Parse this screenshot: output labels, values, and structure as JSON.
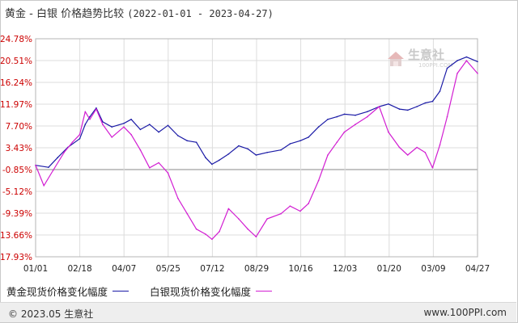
{
  "header": {
    "title": "黄金 - 白银 价格趋势比较",
    "range": "(2022-01-01 - 2023-04-27)"
  },
  "watermark": {
    "name": "生意社",
    "site": "100PPI.COM"
  },
  "footer": {
    "left": "© 2023.05 生意社",
    "right": "www.100PPI.com"
  },
  "colors": {
    "gold": "#1a1aa6",
    "silver": "#d21ed2",
    "ytick": "#cc0000",
    "grid": "#dcdcdc"
  },
  "chart_data": {
    "type": "line",
    "ylim": [
      -17.93,
      24.78
    ],
    "yticks": [
      "24.78%",
      "20.51%",
      "16.24%",
      "11.97%",
      "7.70%",
      "3.43%",
      "-0.85%",
      "-5.12%",
      "-9.39%",
      "-13.66%",
      "-17.93%"
    ],
    "ytick_values": [
      24.78,
      20.51,
      16.24,
      11.97,
      7.7,
      3.43,
      -0.85,
      -5.12,
      -9.39,
      -13.66,
      -17.93
    ],
    "xlim": [
      "2022-01-01",
      "2023-04-27"
    ],
    "xticks": [
      "01/01",
      "02/18",
      "04/07",
      "05/25",
      "07/12",
      "08/29",
      "10/16",
      "12/03",
      "01/20",
      "03/09",
      "04/27"
    ],
    "series": [
      {
        "name": "黄金现货价格变化幅度",
        "color": "#1a1aa6",
        "x": [
          "2022-01-01",
          "2022-01-15",
          "2022-01-25",
          "2022-02-05",
          "2022-02-18",
          "2022-02-24",
          "2022-03-01",
          "2022-03-08",
          "2022-03-15",
          "2022-03-25",
          "2022-04-07",
          "2022-04-15",
          "2022-04-25",
          "2022-05-05",
          "2022-05-15",
          "2022-05-25",
          "2022-06-05",
          "2022-06-15",
          "2022-06-25",
          "2022-07-05",
          "2022-07-12",
          "2022-07-20",
          "2022-07-30",
          "2022-08-10",
          "2022-08-20",
          "2022-08-29",
          "2022-09-10",
          "2022-09-25",
          "2022-10-05",
          "2022-10-16",
          "2022-10-25",
          "2022-11-05",
          "2022-11-15",
          "2022-11-25",
          "2022-12-03",
          "2022-12-15",
          "2022-12-28",
          "2023-01-10",
          "2023-01-20",
          "2023-02-01",
          "2023-02-10",
          "2023-02-20",
          "2023-03-01",
          "2023-03-09",
          "2023-03-17",
          "2023-03-25",
          "2023-04-05",
          "2023-04-15",
          "2023-04-27"
        ],
        "y": [
          0.0,
          -0.4,
          1.5,
          3.5,
          5.2,
          8.0,
          9.5,
          11.2,
          8.5,
          7.5,
          8.2,
          9.0,
          7.0,
          8.0,
          6.5,
          7.8,
          5.8,
          4.8,
          4.5,
          1.5,
          0.2,
          1.0,
          2.2,
          3.8,
          3.2,
          2.0,
          2.5,
          3.0,
          4.2,
          4.8,
          5.5,
          7.5,
          9.0,
          9.5,
          10.0,
          9.8,
          10.5,
          11.5,
          12.0,
          11.0,
          10.8,
          11.5,
          12.2,
          12.5,
          14.5,
          19.0,
          20.5,
          21.2,
          20.3
        ]
      },
      {
        "name": "白银现货价格变化幅度",
        "color": "#d21ed2",
        "x": [
          "2022-01-01",
          "2022-01-10",
          "2022-01-20",
          "2022-02-01",
          "2022-02-10",
          "2022-02-18",
          "2022-02-24",
          "2022-03-01",
          "2022-03-08",
          "2022-03-15",
          "2022-03-25",
          "2022-04-07",
          "2022-04-15",
          "2022-04-25",
          "2022-05-05",
          "2022-05-15",
          "2022-05-25",
          "2022-06-05",
          "2022-06-15",
          "2022-06-25",
          "2022-07-05",
          "2022-07-12",
          "2022-07-20",
          "2022-07-30",
          "2022-08-10",
          "2022-08-20",
          "2022-08-29",
          "2022-09-10",
          "2022-09-25",
          "2022-10-05",
          "2022-10-16",
          "2022-10-25",
          "2022-11-05",
          "2022-11-15",
          "2022-11-25",
          "2022-12-03",
          "2022-12-15",
          "2022-12-28",
          "2023-01-10",
          "2023-01-20",
          "2023-02-01",
          "2023-02-10",
          "2023-02-20",
          "2023-03-01",
          "2023-03-09",
          "2023-03-17",
          "2023-03-25",
          "2023-04-05",
          "2023-04-15",
          "2023-04-27"
        ],
        "y": [
          0.0,
          -4.0,
          -1.0,
          2.5,
          4.5,
          6.0,
          10.5,
          9.0,
          11.0,
          8.0,
          5.5,
          7.5,
          6.0,
          3.0,
          -0.5,
          0.5,
          -1.5,
          -6.5,
          -9.5,
          -12.5,
          -13.5,
          -14.5,
          -13.0,
          -8.5,
          -10.5,
          -12.5,
          -14.0,
          -10.5,
          -9.5,
          -8.0,
          -9.0,
          -7.5,
          -3.0,
          2.0,
          4.5,
          6.5,
          8.0,
          9.5,
          11.5,
          6.5,
          3.5,
          2.0,
          3.5,
          2.5,
          -0.5,
          4.0,
          9.5,
          18.0,
          20.5,
          18.0
        ]
      }
    ]
  }
}
